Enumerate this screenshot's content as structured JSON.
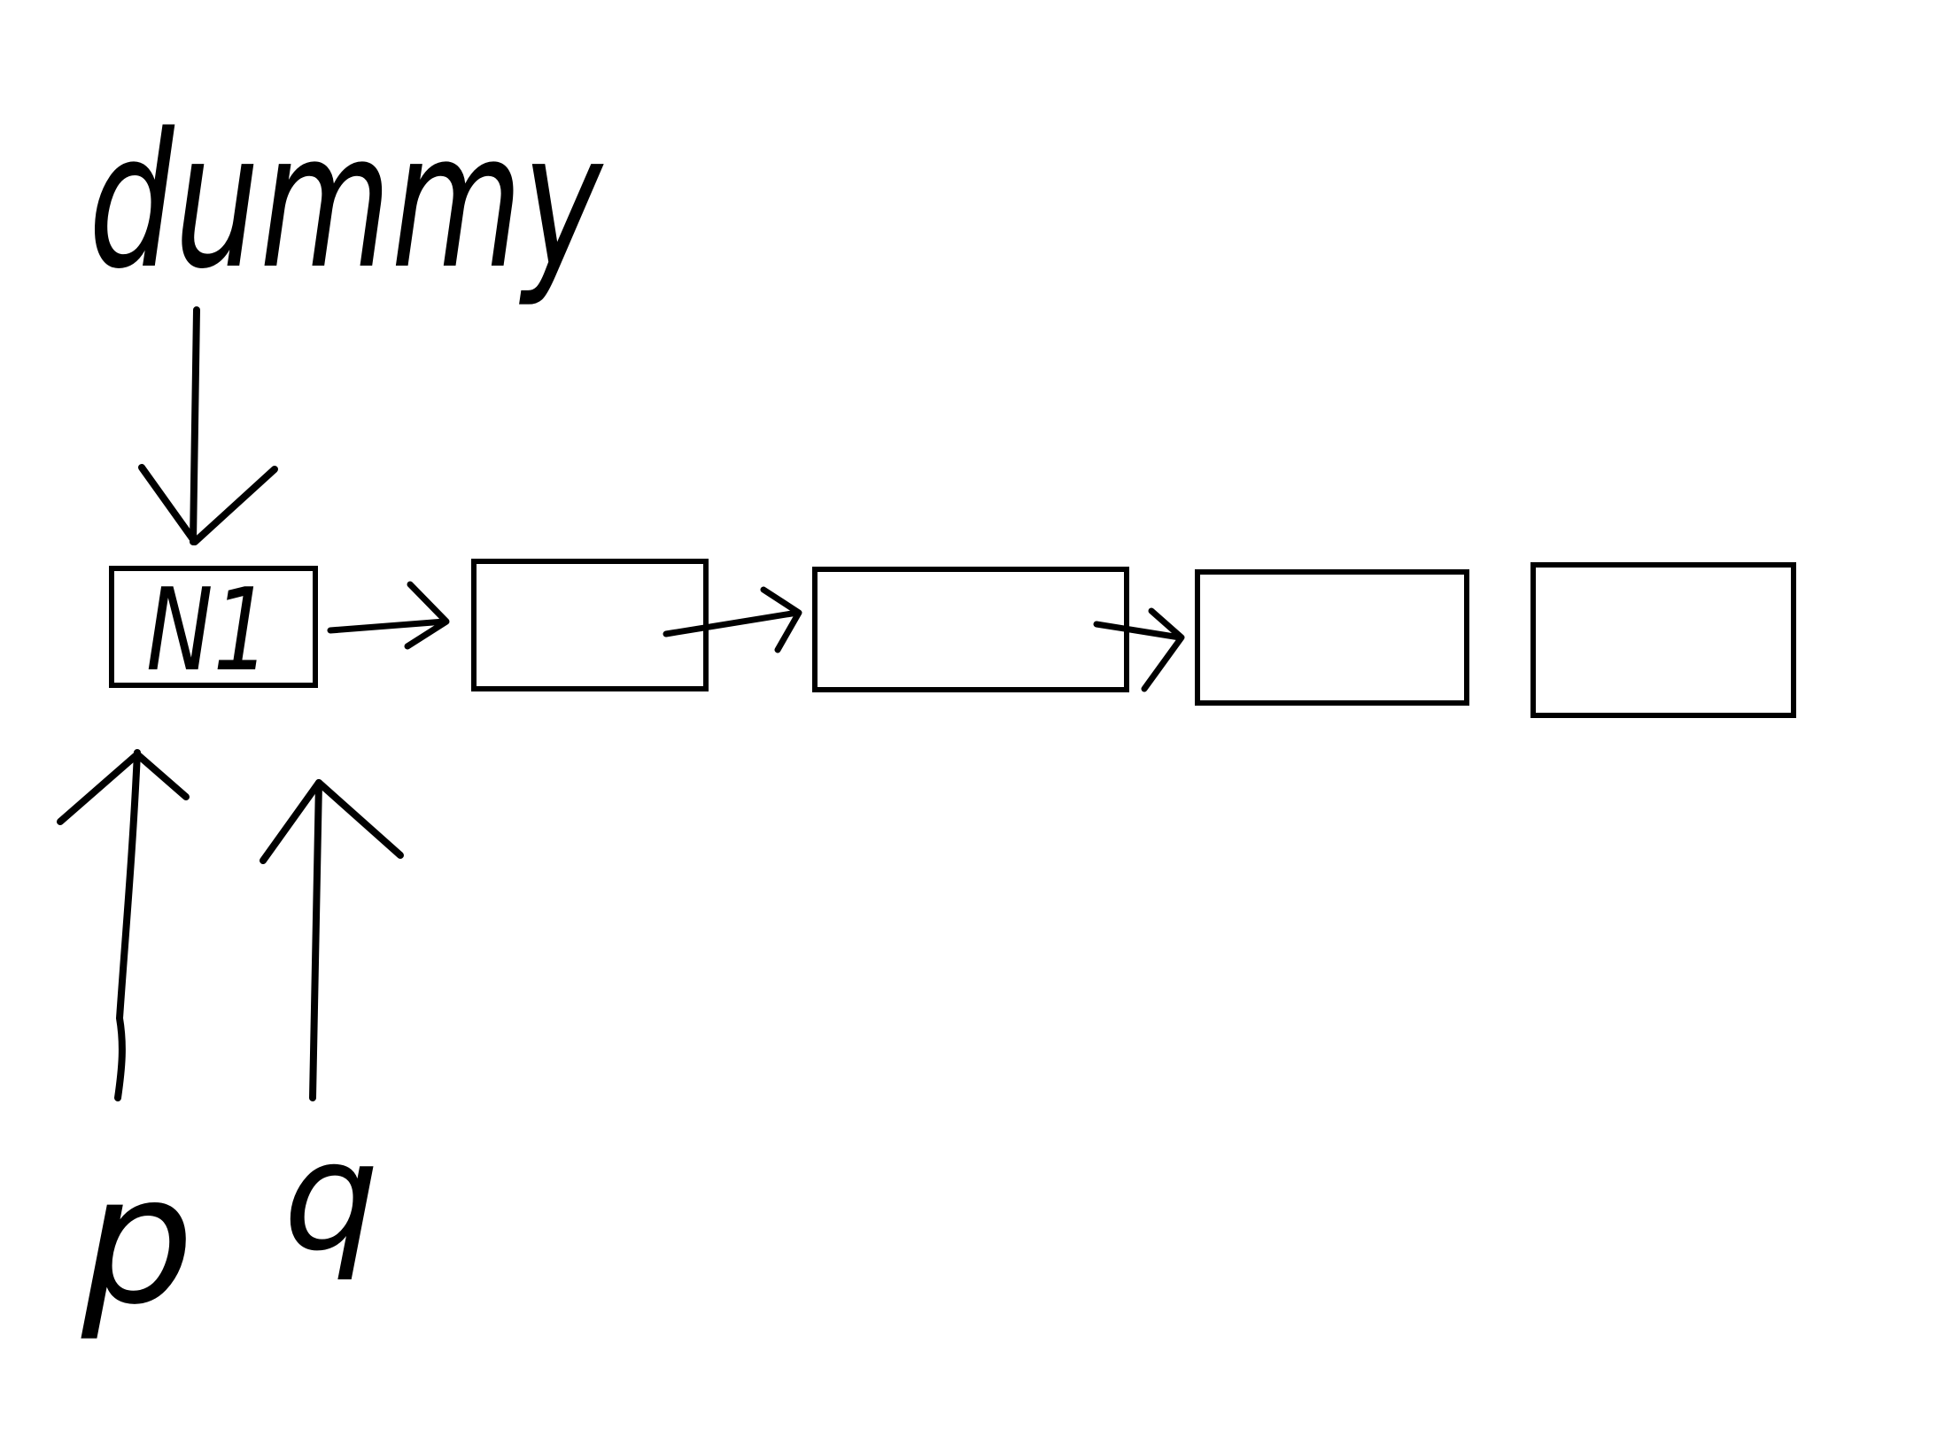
{
  "diagram": {
    "pointers": {
      "dummy": "dummy",
      "p": "p",
      "q": "q"
    },
    "nodes": [
      {
        "label": "N1"
      },
      {
        "label": ""
      },
      {
        "label": ""
      },
      {
        "label": ""
      },
      {
        "label": ""
      }
    ]
  },
  "colors": {
    "background": "#ffffff",
    "ink": "#000000"
  }
}
